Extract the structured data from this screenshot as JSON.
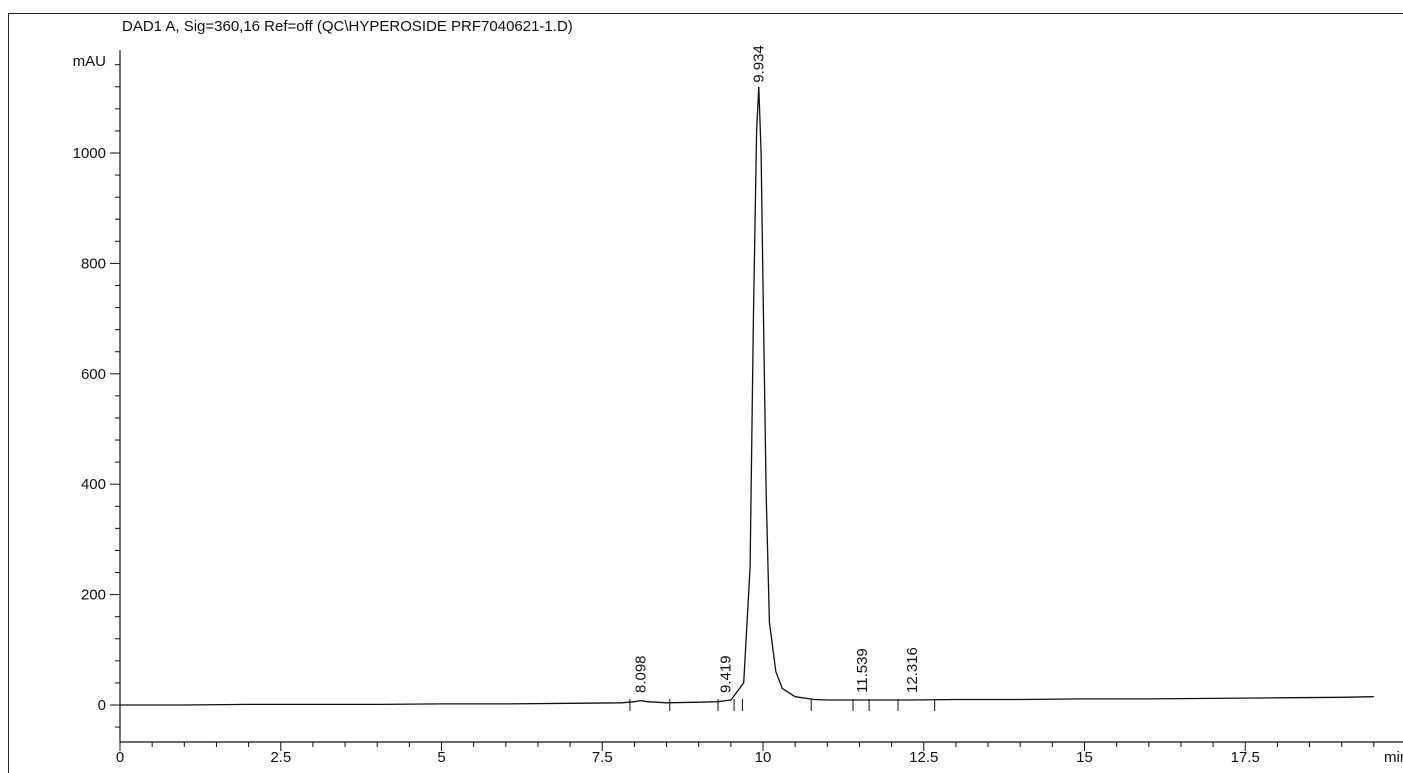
{
  "chart_data": {
    "type": "line",
    "title": "DAD1 A, Sig=360,16 Ref=off (QC\\HYPEROSIDE PRF7040621-1.D)",
    "xlabel": "min",
    "ylabel": "mAU",
    "xlim": [
      0,
      19.5
    ],
    "ylim": [
      -60,
      1200
    ],
    "x_ticks_major": [
      0,
      2.5,
      5,
      7.5,
      10,
      12.5,
      15,
      17.5
    ],
    "x_tick_labels": [
      "0",
      "2.5",
      "5",
      "7.5",
      "10",
      "12.5",
      "15",
      "17.5"
    ],
    "y_ticks_major": [
      0,
      200,
      400,
      600,
      800,
      1000
    ],
    "y_tick_labels": [
      "0",
      "200",
      "400",
      "600",
      "800",
      "1000"
    ],
    "grid": false,
    "peaks": [
      {
        "label": "8.098",
        "rt": 8.098,
        "height": 8
      },
      {
        "label": "9.419",
        "rt": 9.419,
        "height": 4
      },
      {
        "label": "9.934",
        "rt": 9.934,
        "height": 1120
      },
      {
        "label": "11.539",
        "rt": 11.539,
        "height": 3
      },
      {
        "label": "12.316",
        "rt": 12.316,
        "height": 2
      }
    ],
    "series": [
      {
        "x": [
          0,
          1.0,
          2.0,
          3.0,
          4.0,
          5.0,
          6.0,
          7.0,
          7.8,
          8.0,
          8.1,
          8.2,
          8.5,
          9.0,
          9.3,
          9.42,
          9.5,
          9.7,
          9.8,
          9.85,
          9.9,
          9.934,
          9.97,
          10.0,
          10.05,
          10.1,
          10.2,
          10.3,
          10.5,
          10.8,
          11.0,
          11.5,
          12.0,
          12.3,
          13.0,
          14.0,
          15.0,
          16.0,
          17.0,
          18.0,
          19.0,
          19.5
        ],
        "y": [
          0,
          0,
          1,
          1,
          1,
          2,
          2,
          3,
          4,
          6,
          8,
          6,
          4,
          5,
          6,
          8,
          9,
          40,
          250,
          700,
          1040,
          1120,
          1000,
          760,
          380,
          150,
          60,
          30,
          15,
          10,
          9,
          9,
          9,
          9,
          10,
          10,
          11,
          11,
          12,
          13,
          14,
          15
        ]
      }
    ]
  }
}
